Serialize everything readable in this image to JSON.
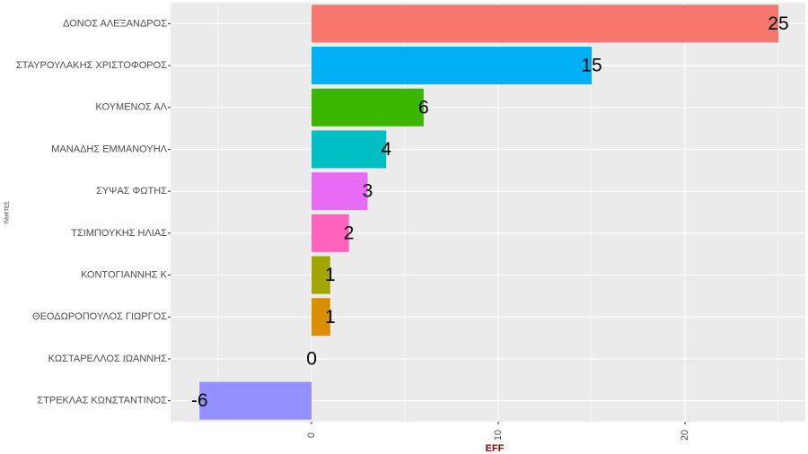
{
  "chart_data": {
    "type": "bar",
    "orientation": "horizontal",
    "categories": [
      "ΔΟΝΟΣ ΑΛΕΞΑΝΔΡΟΣ",
      "ΣΤΑΥΡΟΥΛΑΚΗΣ ΧΡΙΣΤΟΦΟΡΟΣ",
      "ΚΟΥΜΕΝΟΣ ΑΛ",
      "ΜΑΝΑΔΗΣ ΕΜΜΑΝΟΥΗΛ",
      "ΣΥΨΑΣ ΦΩΤΗΣ",
      "ΤΣΙΜΠΟΥΚΗΣ ΗΛΙΑΣ",
      "ΚΟΝΤΟΓΙΑΝΝΗΣ Κ",
      "ΘΕΟΔΩΡΟΠΟΥΛΟΣ ΓΙΩΡΓΟΣ",
      "ΚΩΣΤΑΡΕΛΛΟΣ ΙΩΑΝΝΗΣ",
      "ΣΤΡΕΚΛΑΣ ΚΩΝΣΤΑΝΤΙΝΟΣ"
    ],
    "values": [
      25,
      15,
      6,
      4,
      3,
      2,
      1,
      1,
      0,
      -6
    ],
    "colors": [
      "#F8766D",
      "#00B0F6",
      "#39B600",
      "#00BFC4",
      "#E76BF3",
      "#FF62BC",
      "#A3A500",
      "#D89000",
      "#00BF7D",
      "#9590FF"
    ],
    "xlabel": "EFF",
    "ylabel": "ΠΑΙΚΤΕΣ",
    "xlim": [
      -7.55,
      26.44
    ],
    "xticks": [
      0,
      10,
      20
    ],
    "xminor": [
      -5,
      5,
      15,
      25
    ],
    "grid": true
  }
}
